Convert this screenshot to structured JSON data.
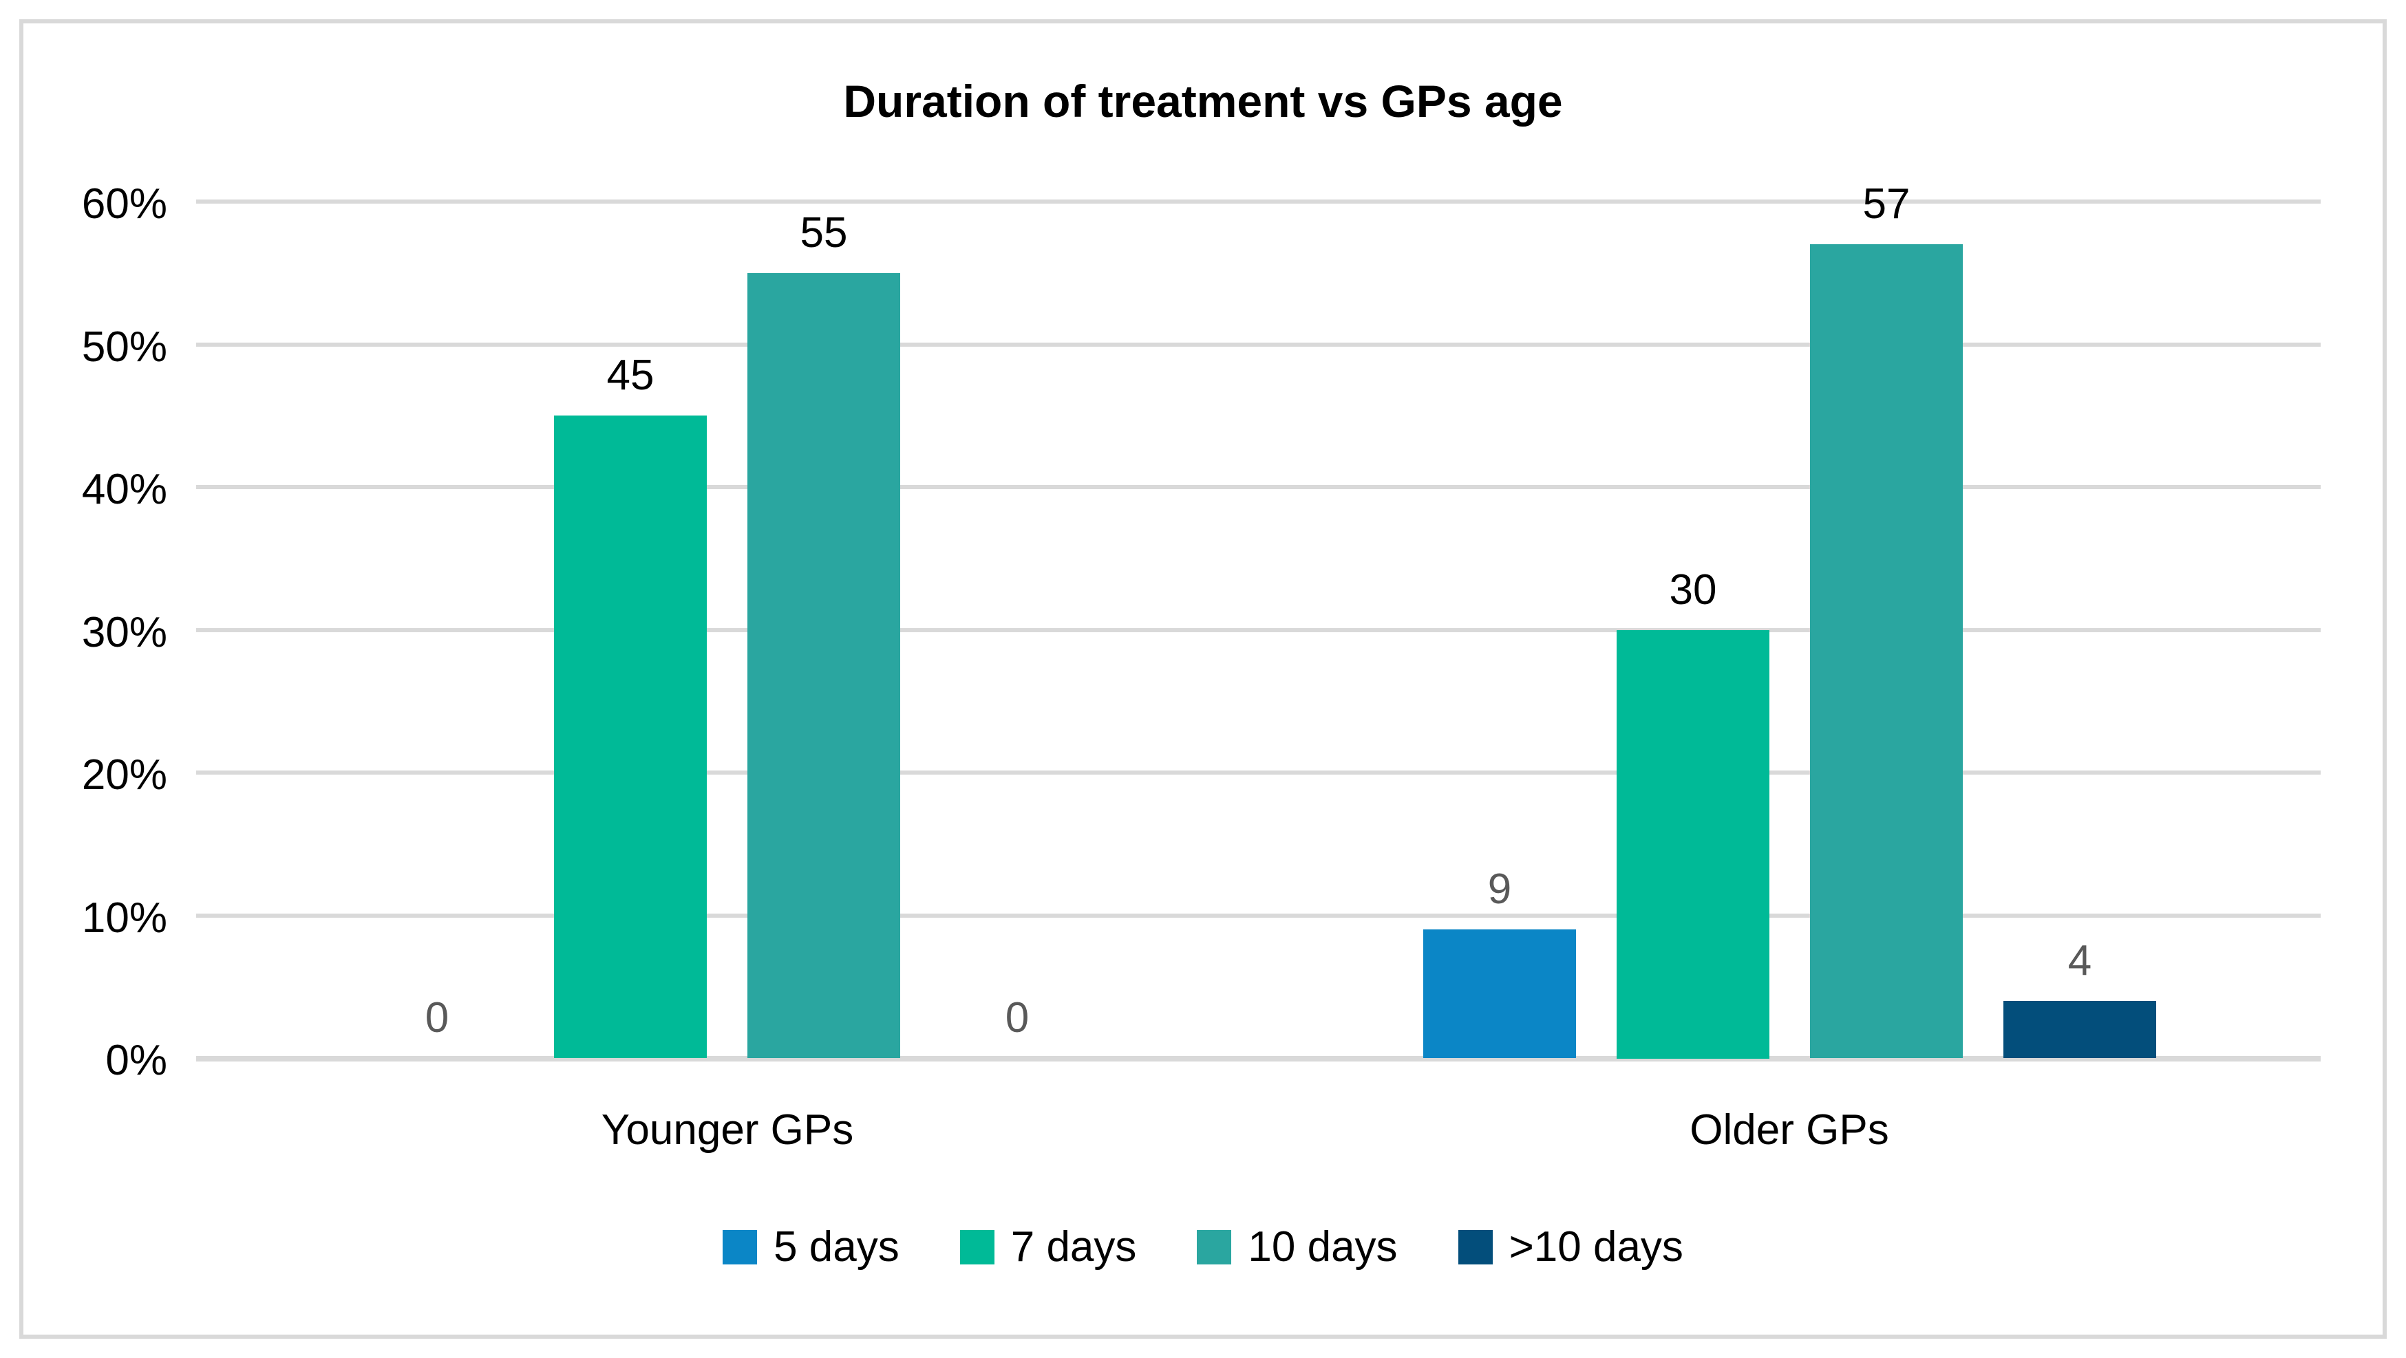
{
  "chart_data": {
    "type": "bar",
    "title": "Duration of treatment vs GPs age",
    "categories": [
      "Younger GPs",
      "Older GPs"
    ],
    "series": [
      {
        "name": "5 days",
        "color": "#0b86c6",
        "label_color": "#595959",
        "values": [
          0,
          9
        ]
      },
      {
        "name": "7 days",
        "color": "#00ba97",
        "label_color": "#000000",
        "values": [
          45,
          30
        ]
      },
      {
        "name": "10 days",
        "color": "#2aa6a0",
        "label_color": "#000000",
        "values": [
          55,
          57
        ]
      },
      {
        "name": ">10 days",
        "color": "#034e7b",
        "label_color": "#595959",
        "values": [
          0,
          4
        ]
      }
    ],
    "y_axis": {
      "min": 0,
      "max": 60,
      "step": 10,
      "tick_labels": [
        "0%",
        "10%",
        "20%",
        "30%",
        "40%",
        "50%",
        "60%"
      ]
    },
    "grid": true,
    "legend_position": "bottom",
    "data_labels": "outside-end",
    "colors": {
      "gridline": "#d9d9d9",
      "frame_border": "#d9d9d9",
      "title_text": "#000000",
      "axis_text": "#000000",
      "muted_label_text": "#595959",
      "background": "#ffffff"
    }
  }
}
